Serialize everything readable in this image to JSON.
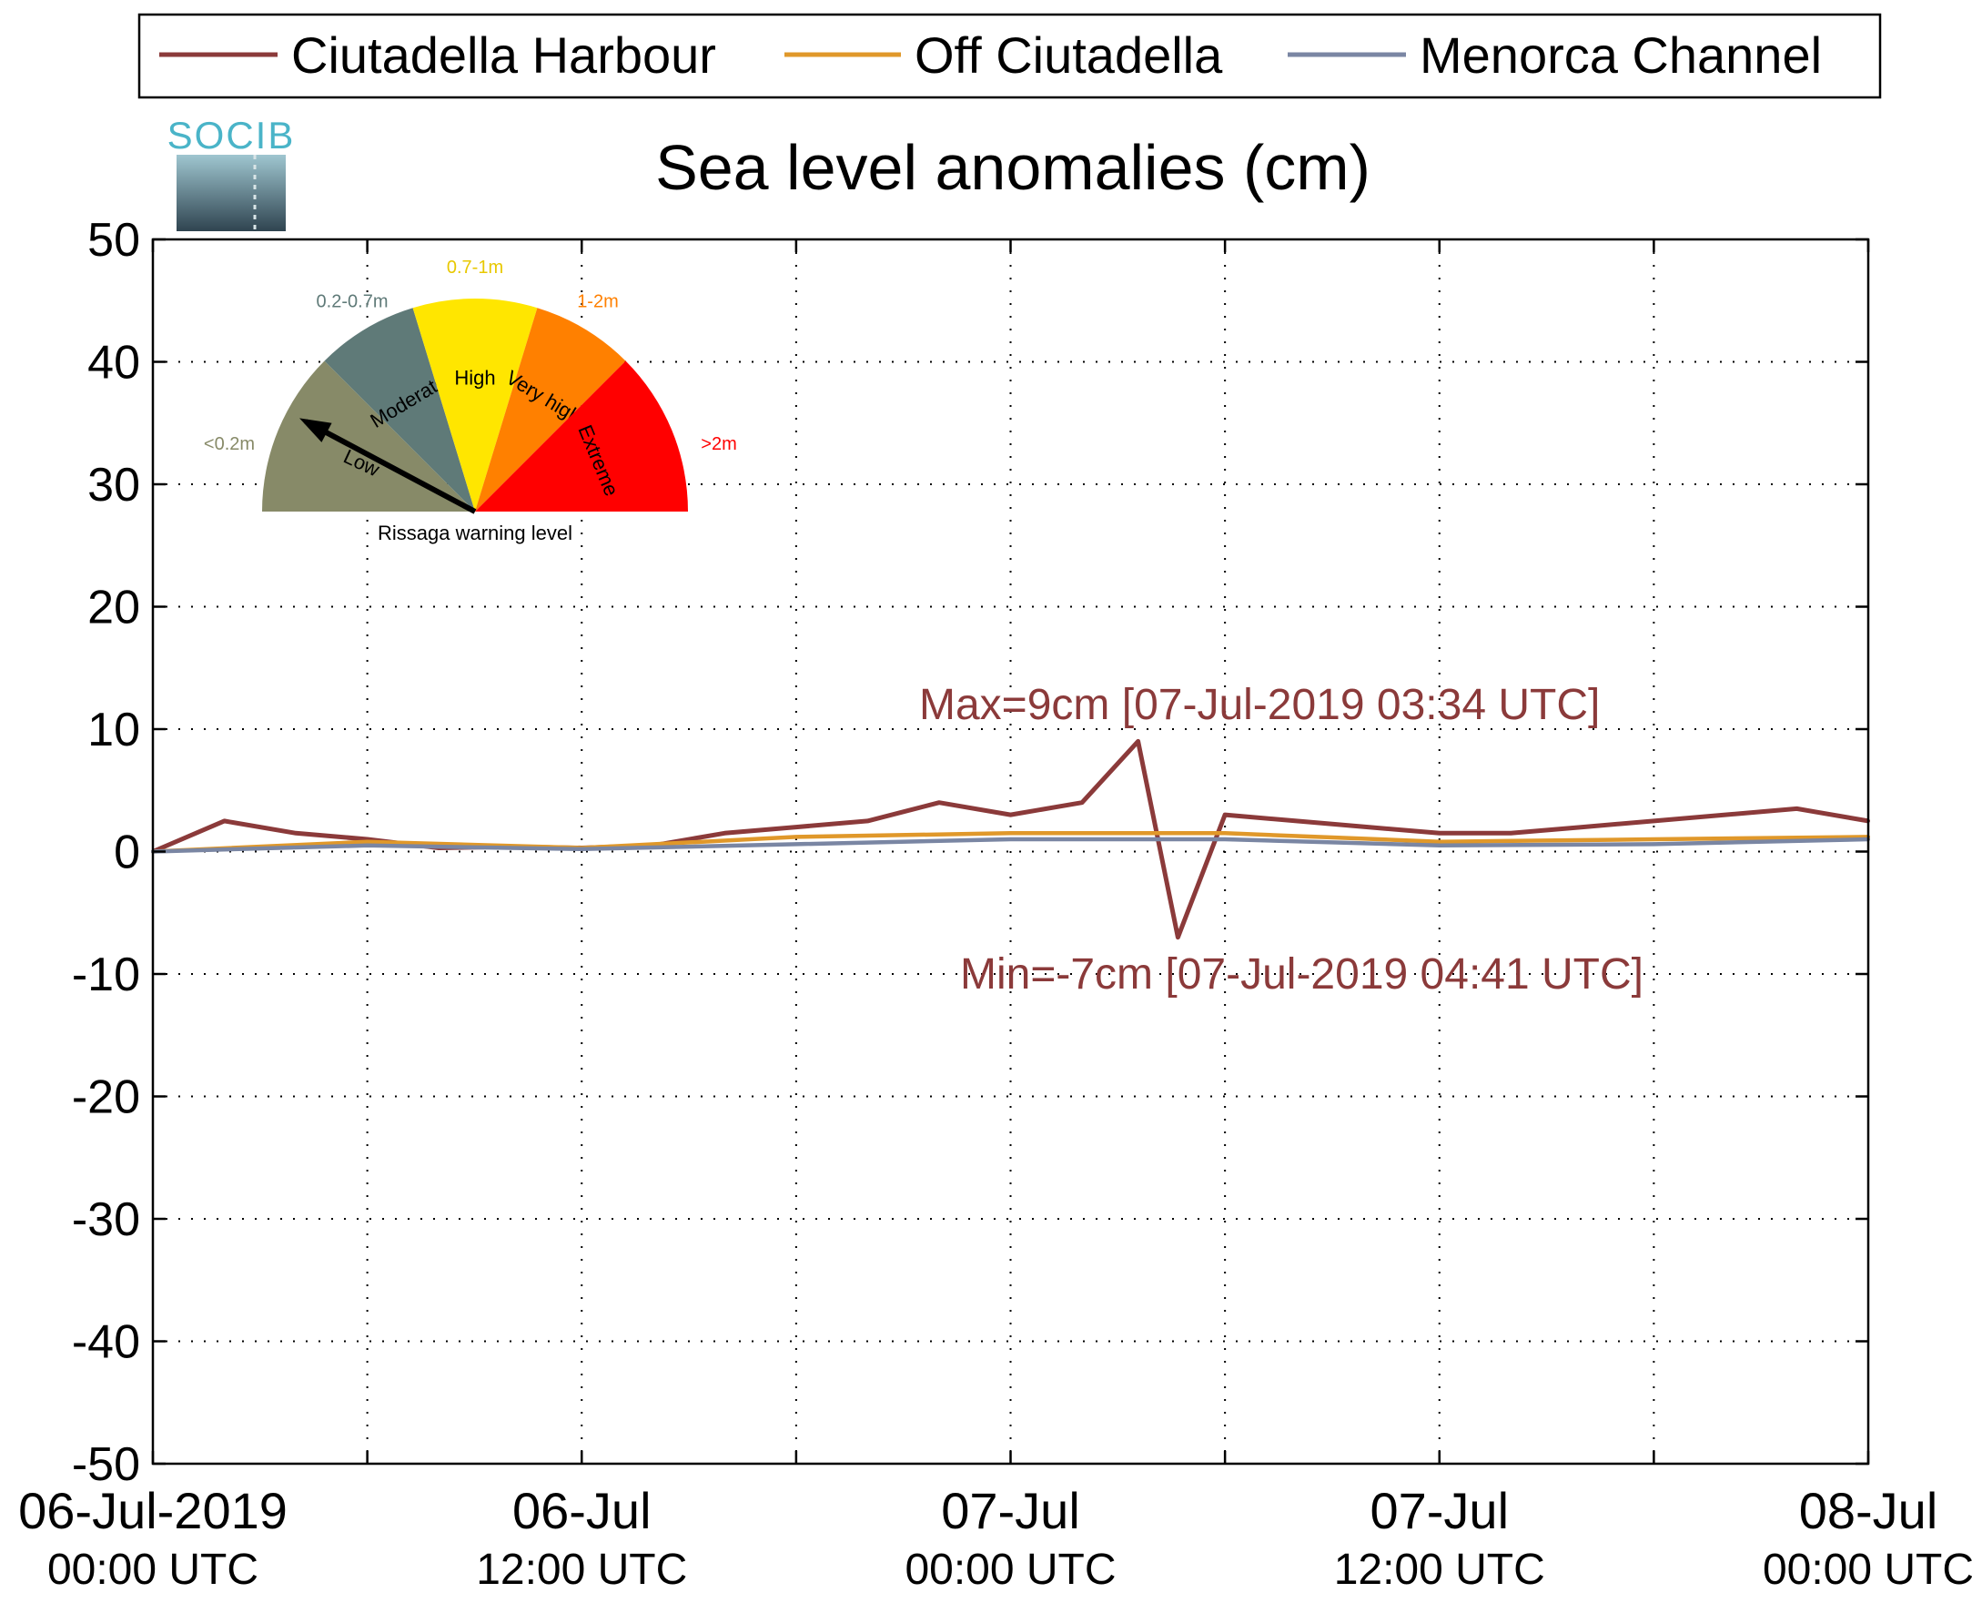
{
  "chart_data": {
    "type": "line",
    "title": "Sea level anomalies (cm)",
    "ylim": [
      -50,
      50
    ],
    "yticks": [
      50,
      40,
      30,
      20,
      10,
      0,
      -10,
      -20,
      -30,
      -40,
      -50
    ],
    "xlim": [
      "2019-07-06 00:00",
      "2019-07-08 00:00"
    ],
    "xtick_labels": [
      {
        "line1": "06-Jul-2019",
        "line2": "00:00 UTC"
      },
      {
        "line1": "06-Jul",
        "line2": "12:00 UTC"
      },
      {
        "line1": "07-Jul",
        "line2": "00:00 UTC"
      },
      {
        "line1": "07-Jul",
        "line2": "12:00 UTC"
      },
      {
        "line1": "08-Jul",
        "line2": "00:00 UTC"
      }
    ],
    "grid": true,
    "legend": "top",
    "series": [
      {
        "name": "Ciutadella Harbour",
        "color": "#8b3a3a",
        "x": [
          "2019-07-06 00:00",
          "2019-07-06 02:00",
          "2019-07-06 04:00",
          "2019-07-06 06:00",
          "2019-07-06 08:00",
          "2019-07-06 10:00",
          "2019-07-06 12:00",
          "2019-07-06 14:00",
          "2019-07-06 16:00",
          "2019-07-06 18:00",
          "2019-07-06 20:00",
          "2019-07-06 22:00",
          "2019-07-07 00:00",
          "2019-07-07 02:00",
          "2019-07-07 03:34",
          "2019-07-07 04:41",
          "2019-07-07 06:00",
          "2019-07-07 08:00",
          "2019-07-07 10:00",
          "2019-07-07 12:00",
          "2019-07-07 14:00",
          "2019-07-07 16:00",
          "2019-07-07 18:00",
          "2019-07-07 20:00",
          "2019-07-07 22:00",
          "2019-07-08 00:00"
        ],
        "y": [
          0,
          2.5,
          1.5,
          1,
          0.3,
          0.4,
          0.3,
          0.5,
          1.5,
          2,
          2.5,
          4,
          3,
          4,
          9,
          -7,
          3,
          2.5,
          2,
          1.5,
          1.5,
          2,
          2.5,
          3,
          3.5,
          2.5
        ]
      },
      {
        "name": "Off Ciutadella",
        "color": "#e0982a",
        "x": [
          "2019-07-06 00:00",
          "2019-07-06 06:00",
          "2019-07-06 12:00",
          "2019-07-06 18:00",
          "2019-07-07 00:00",
          "2019-07-07 06:00",
          "2019-07-07 12:00",
          "2019-07-07 18:00",
          "2019-07-08 00:00"
        ],
        "y": [
          0,
          0.8,
          0.3,
          1.2,
          1.5,
          1.5,
          0.8,
          1,
          1.2
        ]
      },
      {
        "name": "Menorca Channel",
        "color": "#7a86a3",
        "x": [
          "2019-07-06 00:00",
          "2019-07-06 06:00",
          "2019-07-06 12:00",
          "2019-07-06 18:00",
          "2019-07-07 00:00",
          "2019-07-07 06:00",
          "2019-07-07 12:00",
          "2019-07-07 18:00",
          "2019-07-08 00:00"
        ],
        "y": [
          0,
          0.5,
          0.2,
          0.6,
          1,
          1,
          0.5,
          0.6,
          1
        ]
      }
    ],
    "annotations": [
      {
        "text": "Max=9cm [07-Jul-2019 03:34 UTC]",
        "color": "#8b3a3a"
      },
      {
        "text": "Min=-7cm [07-Jul-2019 04:41 UTC]",
        "color": "#8b3a3a"
      }
    ]
  },
  "logo": {
    "text": "SOCIB"
  },
  "gauge": {
    "caption": "Rissaga warning level",
    "segments": [
      {
        "name": "Low",
        "range": "<0.2m",
        "color": "#878a68",
        "text_color": "#878a68"
      },
      {
        "name": "Moderate",
        "range": "0.2-0.7m",
        "color": "#5f7a78",
        "text_color": "#5f7a78"
      },
      {
        "name": "High",
        "range": "0.7-1m",
        "color": "#ffe600",
        "text_color": "#e8c800"
      },
      {
        "name": "Very high",
        "range": "1-2m",
        "color": "#ff8000",
        "text_color": "#ff8000"
      },
      {
        "name": "Extreme",
        "range": ">2m",
        "color": "#ff0000",
        "text_color": "#ff0000"
      }
    ],
    "needle_level": "Low"
  }
}
